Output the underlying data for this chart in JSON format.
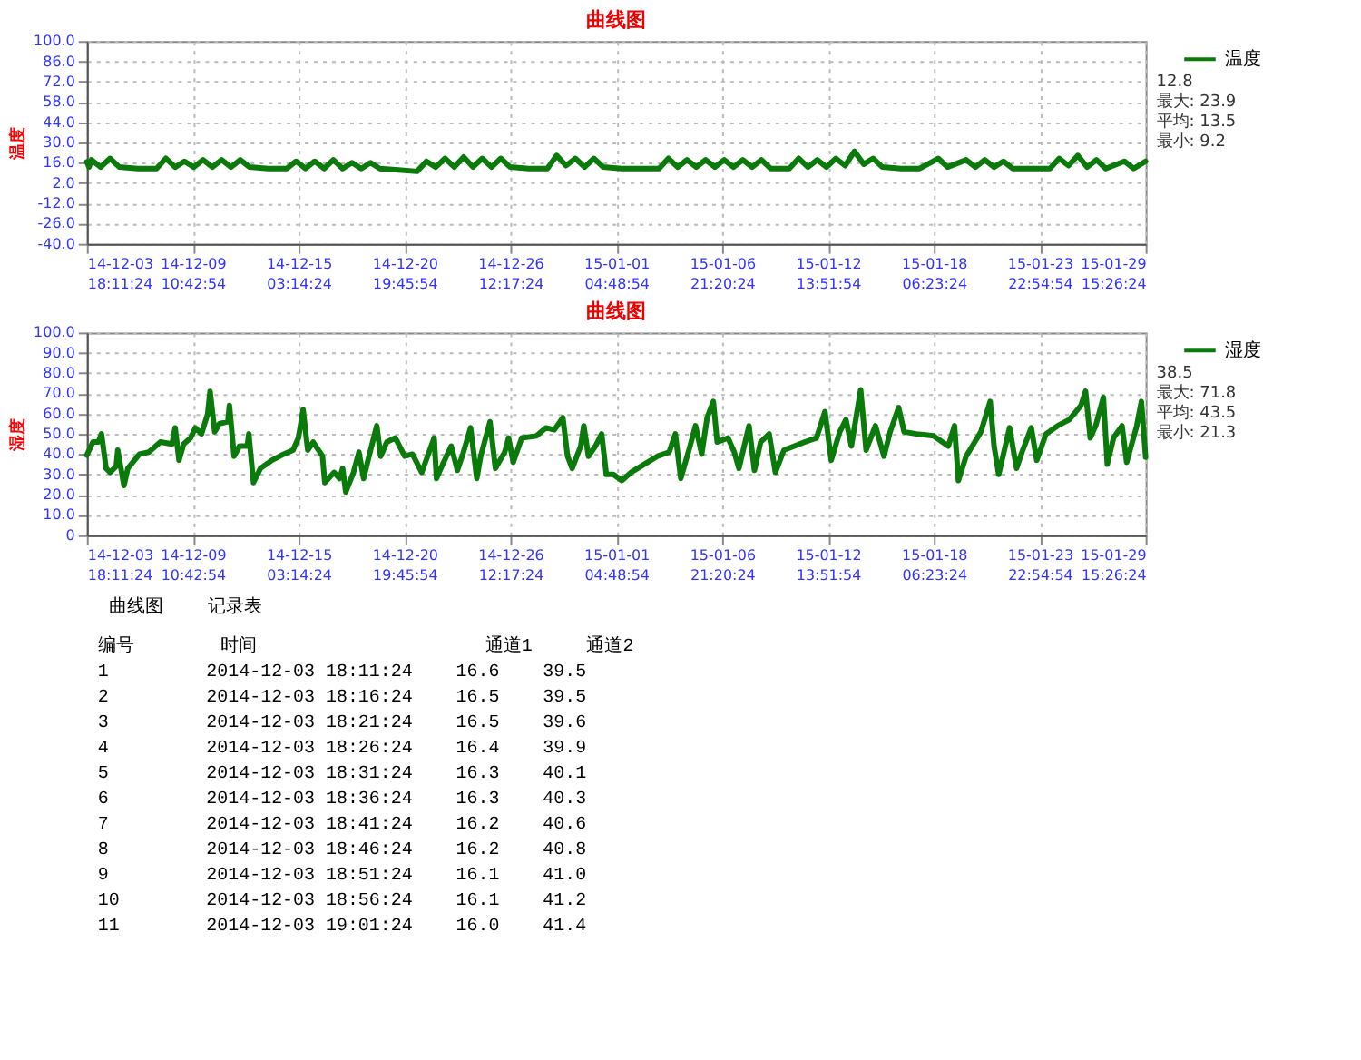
{
  "chart_data": [
    {
      "type": "line",
      "title": "曲线图",
      "ylabel": "温度",
      "grid": true,
      "legend": "right",
      "xlim": [
        "2014-12-03T18:11:24",
        "2015-01-29T15:26:24"
      ],
      "ylim": [
        -40,
        100
      ],
      "xticks": [
        {
          "value": "2014-12-03T18:11:24",
          "label": "14-12-03\n18:11:24"
        },
        {
          "value": "2014-12-09T10:42:54",
          "label": "14-12-09\n10:42:54"
        },
        {
          "value": "2014-12-15T03:14:24",
          "label": "14-12-15\n03:14:24"
        },
        {
          "value": "2014-12-20T19:45:54",
          "label": "14-12-20\n19:45:54"
        },
        {
          "value": "2014-12-26T12:17:24",
          "label": "14-12-26\n12:17:24"
        },
        {
          "value": "2015-01-01T04:48:54",
          "label": "15-01-01\n04:48:54"
        },
        {
          "value": "2015-01-06T21:20:24",
          "label": "15-01-06\n21:20:24"
        },
        {
          "value": "2015-01-12T13:51:54",
          "label": "15-01-12\n13:51:54"
        },
        {
          "value": "2015-01-18T06:23:24",
          "label": "15-01-18\n06:23:24"
        },
        {
          "value": "2015-01-23T22:54:54",
          "label": "15-01-23\n22:54:54"
        },
        {
          "value": "2015-01-29T15:26:24",
          "label": "15-01-29\n15:26:24"
        }
      ],
      "yticks": [
        {
          "value": -40,
          "label": "-40.0"
        },
        {
          "value": -26,
          "label": "-26.0"
        },
        {
          "value": -12,
          "label": "-12.0"
        },
        {
          "value": 2,
          "label": "2.0"
        },
        {
          "value": 16,
          "label": "16.0"
        },
        {
          "value": 30,
          "label": "30.0"
        },
        {
          "value": 44,
          "label": "44.0"
        },
        {
          "value": 58,
          "label": "58.0"
        },
        {
          "value": 72,
          "label": "72.0"
        },
        {
          "value": 86,
          "label": "86.0"
        },
        {
          "value": 100,
          "label": "100.0"
        }
      ],
      "annotations": [
        "12.8",
        "最大: 23.9",
        "平均: 13.5",
        "最小: 9.2"
      ],
      "series": [
        {
          "name": "温度",
          "color": "#0a7a0a",
          "x": [
            "2014-12-03T18:11:24",
            "2014-12-03T21:00",
            "2014-12-04T00:00",
            "2014-12-04T12:00",
            "2014-12-05T00:00",
            "2014-12-05T12:00",
            "2014-12-06T12:00",
            "2014-12-07T12:00",
            "2014-12-08T00:00",
            "2014-12-08T12:00",
            "2014-12-09T00:00",
            "2014-12-09T12:00",
            "2014-12-10T00:00",
            "2014-12-10T12:00",
            "2014-12-11T00:00",
            "2014-12-11T12:00",
            "2014-12-12T00:00",
            "2014-12-12T12:00",
            "2014-12-13T12:00",
            "2014-12-14T12:00",
            "2014-12-15T00:00",
            "2014-12-15T12:00",
            "2014-12-16T00:00",
            "2014-12-16T12:00",
            "2014-12-17T00:00",
            "2014-12-17T12:00",
            "2014-12-18T00:00",
            "2014-12-18T12:00",
            "2014-12-19T00:00",
            "2014-12-19T12:00",
            "2014-12-20T12:00",
            "2014-12-21T12:00",
            "2014-12-22T00:00",
            "2014-12-22T12:00",
            "2014-12-23T00:00",
            "2014-12-23T12:00",
            "2014-12-24T00:00",
            "2014-12-24T12:00",
            "2014-12-25T00:00",
            "2014-12-25T12:00",
            "2014-12-26T00:00",
            "2014-12-26T12:00",
            "2014-12-27T12:00",
            "2014-12-28T12:00",
            "2014-12-29T00:00",
            "2014-12-29T12:00",
            "2014-12-30T00:00",
            "2014-12-30T12:00",
            "2014-12-31T00:00",
            "2014-12-31T12:00",
            "2015-01-01T12:00",
            "2015-01-02T12:00",
            "2015-01-03T12:00",
            "2015-01-04T00:00",
            "2015-01-04T12:00",
            "2015-01-05T00:00",
            "2015-01-05T12:00",
            "2015-01-06T00:00",
            "2015-01-06T12:00",
            "2015-01-07T00:00",
            "2015-01-07T12:00",
            "2015-01-08T00:00",
            "2015-01-08T12:00",
            "2015-01-09T00:00",
            "2015-01-09T12:00",
            "2015-01-10T12:00",
            "2015-01-11T00:00",
            "2015-01-11T12:00",
            "2015-01-12T00:00",
            "2015-01-12T12:00",
            "2015-01-13T00:00",
            "2015-01-13T12:00",
            "2015-01-14T00:00",
            "2015-01-14T12:00",
            "2015-01-15T00:00",
            "2015-01-15T12:00",
            "2015-01-16T12:00",
            "2015-01-17T12:00",
            "2015-01-18T12:00",
            "2015-01-19T00:00",
            "2015-01-20T00:00",
            "2015-01-20T12:00",
            "2015-01-21T00:00",
            "2015-01-21T12:00",
            "2015-01-22T00:00",
            "2015-01-22T12:00",
            "2015-01-23T12:00",
            "2015-01-24T12:00",
            "2015-01-25T00:00",
            "2015-01-25T12:00",
            "2015-01-26T00:00",
            "2015-01-26T12:00",
            "2015-01-27T00:00",
            "2015-01-27T12:00",
            "2015-01-28T12:00",
            "2015-01-29T00:00",
            "2015-01-29T15:26:24"
          ],
          "values": [
            16.6,
            13,
            18,
            13,
            19,
            13,
            12,
            12,
            19,
            13,
            17,
            13,
            18,
            13,
            18,
            13,
            18,
            13,
            12,
            12,
            17,
            12,
            17,
            12,
            18,
            12,
            16,
            12,
            16,
            12,
            11,
            10,
            17,
            13,
            19,
            13,
            20,
            13,
            19,
            13,
            19,
            13,
            12,
            12,
            21,
            14,
            19,
            13,
            19,
            13,
            12,
            12,
            12,
            19,
            13,
            18,
            13,
            18,
            13,
            18,
            13,
            18,
            13,
            18,
            12,
            12,
            19,
            13,
            18,
            13,
            19,
            14,
            23.9,
            15,
            19,
            13,
            12,
            12,
            19,
            13,
            18,
            13,
            18,
            13,
            17,
            12,
            12,
            12,
            19,
            14,
            21,
            13,
            18,
            12,
            17,
            12,
            17
          ]
        }
      ]
    },
    {
      "type": "line",
      "title": "曲线图",
      "ylabel": "湿度",
      "grid": true,
      "legend": "right",
      "xlim": [
        "2014-12-03T18:11:24",
        "2015-01-29T15:26:24"
      ],
      "ylim": [
        0,
        100
      ],
      "xticks": [
        {
          "value": "2014-12-03T18:11:24",
          "label": "14-12-03\n18:11:24"
        },
        {
          "value": "2014-12-09T10:42:54",
          "label": "14-12-09\n10:42:54"
        },
        {
          "value": "2014-12-15T03:14:24",
          "label": "14-12-15\n03:14:24"
        },
        {
          "value": "2014-12-20T19:45:54",
          "label": "14-12-20\n19:45:54"
        },
        {
          "value": "2014-12-26T12:17:24",
          "label": "14-12-26\n12:17:24"
        },
        {
          "value": "2015-01-01T04:48:54",
          "label": "15-01-01\n04:48:54"
        },
        {
          "value": "2015-01-06T21:20:24",
          "label": "15-01-06\n21:20:24"
        },
        {
          "value": "2015-01-12T13:51:54",
          "label": "15-01-12\n13:51:54"
        },
        {
          "value": "2015-01-18T06:23:24",
          "label": "15-01-18\n06:23:24"
        },
        {
          "value": "2015-01-23T22:54:54",
          "label": "15-01-23\n22:54:54"
        },
        {
          "value": "2015-01-29T15:26:24",
          "label": "15-01-29\n15:26:24"
        }
      ],
      "yticks": [
        0,
        {
          "value": 10,
          "label": "10.0"
        },
        {
          "value": 20,
          "label": "20.0"
        },
        {
          "value": 30,
          "label": "30.0"
        },
        {
          "value": 40,
          "label": "40.0"
        },
        {
          "value": 50,
          "label": "50.0"
        },
        {
          "value": 60,
          "label": "60.0"
        },
        {
          "value": 70,
          "label": "70.0"
        },
        {
          "value": 80,
          "label": "80.0"
        },
        {
          "value": 90,
          "label": "90.0"
        },
        {
          "value": 100,
          "label": "100.0"
        }
      ],
      "annotations": [
        "38.5",
        "最大: 71.8",
        "平均: 43.5",
        "最小: 21.3"
      ],
      "series": [
        {
          "name": "湿度",
          "color": "#0a7a0a",
          "x": [
            "2014-12-03T18:11:24",
            "2014-12-04T02:00",
            "2014-12-04T09:00",
            "2014-12-04T13:00",
            "2014-12-04T19:00",
            "2014-12-05T00:00",
            "2014-12-05T08:00",
            "2014-12-05T10:00",
            "2014-12-05T18:00",
            "2014-12-05T23:00",
            "2014-12-06T14:00",
            "2014-12-07T02:00",
            "2014-12-07T17:00",
            "2014-12-08T08:00",
            "2014-12-08T12:00",
            "2014-12-08T17:00",
            "2014-12-08T23:00",
            "2014-12-09T08:00",
            "2014-12-09T14:00",
            "2014-12-09T22:00",
            "2014-12-10T06:00",
            "2014-12-10T09:00",
            "2014-12-10T15:00",
            "2014-12-10T21:00",
            "2014-12-11T08:00",
            "2014-12-11T10:00",
            "2014-12-11T16:00",
            "2014-12-11T23:00",
            "2014-12-12T09:00",
            "2014-12-12T11:00",
            "2014-12-12T17:00",
            "2014-12-13T02:00",
            "2014-12-13T17:00",
            "2014-12-14T08:00",
            "2014-12-14T20:00",
            "2014-12-15T03:00",
            "2014-12-15T09:00",
            "2014-12-15T15:00",
            "2014-12-15T22:00",
            "2014-12-16T10:00",
            "2014-12-16T13:00",
            "2014-12-17T01:00",
            "2014-12-17T08:00",
            "2014-12-17T12:00",
            "2014-12-17T16:00",
            "2014-12-18T02:00",
            "2014-12-18T09:00",
            "2014-12-18T15:00",
            "2014-12-18T22:00",
            "2014-12-19T08:00",
            "2014-12-19T13:00",
            "2014-12-19T21:00",
            "2014-12-20T08:00",
            "2014-12-20T20:00",
            "2014-12-21T06:00",
            "2014-12-21T18:00",
            "2014-12-22T10:00",
            "2014-12-22T13:00",
            "2014-12-22T21:00",
            "2014-12-23T08:00",
            "2014-12-23T16:00",
            "2014-12-23T23:00",
            "2014-12-24T09:00",
            "2014-12-24T17:00",
            "2014-12-24T22:00",
            "2014-12-25T10:00",
            "2014-12-25T17:00",
            "2014-12-26T05:00",
            "2014-12-26T10:00",
            "2014-12-26T16:00",
            "2014-12-27T03:00",
            "2014-12-27T22:00",
            "2014-12-28T10:00",
            "2014-12-28T21:00",
            "2014-12-29T08:00",
            "2014-12-29T14:00",
            "2014-12-29T20:00",
            "2014-12-30T07:00",
            "2014-12-30T11:00",
            "2014-12-30T17:00",
            "2014-12-31T02:00",
            "2014-12-31T10:00",
            "2014-12-31T16:00",
            "2015-01-01T01:00",
            "2015-01-01T12:00",
            "2015-01-02T00:00",
            "2015-01-02T04:00",
            "2015-01-03T10:00",
            "2015-01-04T01:00",
            "2015-01-04T09:00",
            "2015-01-04T16:00",
            "2015-01-05T04:00",
            "2015-01-05T11:00",
            "2015-01-05T19:00",
            "2015-01-06T02:00",
            "2015-01-06T10:00",
            "2015-01-06T15:00",
            "2015-01-07T05:00",
            "2015-01-07T13:00",
            "2015-01-07T19:00",
            "2015-01-08T08:00",
            "2015-01-08T15:00",
            "2015-01-08T23:00",
            "2015-01-09T10:00",
            "2015-01-09T18:00",
            "2015-01-10T05:00",
            "2015-01-11T08:00",
            "2015-01-11T23:00",
            "2015-01-12T10:00",
            "2015-01-12T18:00",
            "2015-01-13T05:00",
            "2015-01-13T13:00",
            "2015-01-13T20:00",
            "2015-01-14T08:00",
            "2015-01-14T15:00",
            "2015-01-15T03:00",
            "2015-01-15T14:00",
            "2015-01-15T22:00",
            "2015-01-16T09:00",
            "2015-01-16T16:00",
            "2015-01-17T08:00",
            "2015-01-18T06:00",
            "2015-01-19T01:00",
            "2015-01-19T09:00",
            "2015-01-19T14:00",
            "2015-01-20T00:00",
            "2015-01-20T19:00",
            "2015-01-21T07:00",
            "2015-01-21T12:00",
            "2015-01-21T18:00",
            "2015-01-22T08:00",
            "2015-01-22T17:00",
            "2015-01-23T00:00",
            "2015-01-23T12:00",
            "2015-01-23T19:00",
            "2015-01-24T07:00",
            "2015-01-24T22:00",
            "2015-01-25T13:00",
            "2015-01-26T04:00",
            "2015-01-26T10:00",
            "2015-01-26T16:00",
            "2015-01-26T23:00",
            "2015-01-27T09:00",
            "2015-01-27T14:00",
            "2015-01-27T22:00",
            "2015-01-28T09:00",
            "2015-01-28T15:00",
            "2015-01-29T04:00",
            "2015-01-29T10:00",
            "2015-01-29T15:26:24"
          ],
          "values": [
            39.5,
            46,
            46,
            50,
            33,
            31,
            34,
            42,
            24.5,
            33,
            40,
            41,
            46,
            45,
            53,
            37,
            45,
            48,
            53,
            50,
            60,
            71,
            51,
            55,
            56,
            64,
            39,
            44,
            44,
            50,
            26,
            33,
            37,
            40,
            42,
            48,
            62,
            42,
            46,
            39,
            26,
            31,
            28,
            33,
            21.3,
            31,
            41,
            28,
            39,
            54,
            39,
            46,
            48,
            39,
            40,
            31,
            48,
            28,
            35,
            44,
            32,
            40,
            53,
            28,
            39,
            56,
            33,
            41,
            48,
            36,
            48,
            49,
            53,
            52,
            58,
            39,
            33,
            44,
            54,
            39,
            44,
            50,
            30,
            30,
            27,
            31,
            32,
            39,
            41,
            50,
            28,
            44,
            54,
            40,
            58,
            66,
            46,
            48,
            41,
            33,
            54,
            32,
            46,
            50,
            31,
            42,
            46,
            48,
            61,
            37,
            51,
            57,
            44,
            71.8,
            42,
            54,
            39,
            51,
            63,
            51,
            50,
            49,
            44,
            54,
            27,
            39,
            51,
            66,
            44,
            30,
            53,
            33,
            41,
            53,
            37,
            50,
            54,
            57,
            64,
            71,
            48,
            54,
            68,
            35,
            48,
            54,
            36,
            54,
            66,
            38.5
          ]
        }
      ]
    },
    {
      "type": "other",
      "annotations": [
        "曲线图",
        "记录表",
        "编号",
        "时间",
        "通道1",
        "通道2",
        "1",
        "2014-12-03 18:11:24",
        "16.6",
        "39.5",
        "2",
        "2014-12-03 18:16:24",
        "16.5",
        "39.5",
        "3",
        "2014-12-03 18:21:24",
        "16.5",
        "39.6",
        "4",
        "2014-12-03 18:26:24",
        "16.4",
        "39.9",
        "5",
        "2014-12-03 18:31:24",
        "16.3",
        "40.1",
        "6",
        "2014-12-03 18:36:24",
        "16.3",
        "40.3",
        "7",
        "2014-12-03 18:41:24",
        "16.2",
        "40.6",
        "8",
        "2014-12-03 18:46:24",
        "16.2",
        "40.8",
        "9",
        "2014-12-03 18:51:24",
        "16.1",
        "41.0",
        "10",
        "2014-12-03 18:56:24",
        "16.1",
        "41.2",
        "11",
        "2014-12-03 19:01:24",
        "16.0",
        "41.4"
      ]
    }
  ]
}
